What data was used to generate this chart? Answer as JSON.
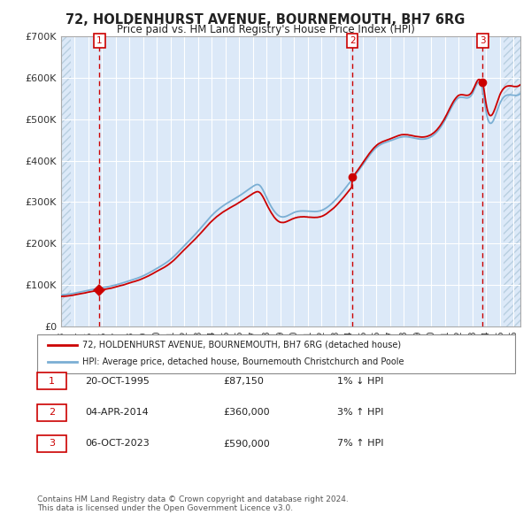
{
  "title": "72, HOLDENHURST AVENUE, BOURNEMOUTH, BH7 6RG",
  "subtitle": "Price paid vs. HM Land Registry's House Price Index (HPI)",
  "legend_line1": "72, HOLDENHURST AVENUE, BOURNEMOUTH, BH7 6RG (detached house)",
  "legend_line2": "HPI: Average price, detached house, Bournemouth Christchurch and Poole",
  "footnote": "Contains HM Land Registry data © Crown copyright and database right 2024.\nThis data is licensed under the Open Government Licence v3.0.",
  "transactions": [
    {
      "num": 1,
      "date": "20-OCT-1995",
      "price": 87150,
      "pct": "1%",
      "dir": "↓"
    },
    {
      "num": 2,
      "date": "04-APR-2014",
      "price": 360000,
      "pct": "3%",
      "dir": "↑"
    },
    {
      "num": 3,
      "date": "06-OCT-2023",
      "price": 590000,
      "pct": "7%",
      "dir": "↑"
    }
  ],
  "transaction_dates_decimal": [
    1995.8,
    2014.25,
    2023.75
  ],
  "transaction_prices": [
    87150,
    360000,
    590000
  ],
  "ylim": [
    0,
    700000
  ],
  "yticks": [
    0,
    100000,
    200000,
    300000,
    400000,
    500000,
    600000,
    700000
  ],
  "ytick_labels": [
    "£0",
    "£100K",
    "£200K",
    "£300K",
    "£400K",
    "£500K",
    "£600K",
    "£700K"
  ],
  "xlim_start": 1993.0,
  "xlim_end": 2026.5,
  "xtick_start": 1993,
  "xtick_end": 2026,
  "background_color": "#dce9f8",
  "hatch_color": "#b8cfe0",
  "grid_color": "#ffffff",
  "line_color_red": "#cc0000",
  "line_color_blue": "#7bafd4",
  "dashed_vline_color": "#cc0000",
  "marker_color": "#cc0000",
  "box_color": "#cc0000",
  "hpi_control_years": [
    1993,
    1994,
    1995,
    1996,
    1997,
    1998,
    1999,
    2000,
    2001,
    2002,
    2003,
    2004,
    2005,
    2006,
    2007,
    2007.5,
    2008,
    2009,
    2010,
    2011,
    2012,
    2013,
    2014,
    2015,
    2016,
    2017,
    2018,
    2019,
    2020,
    2021,
    2022,
    2023,
    2023.75,
    2024,
    2025,
    2026,
    2026.5
  ],
  "hpi_control_vals": [
    76000,
    80000,
    87000,
    93000,
    100000,
    110000,
    122000,
    140000,
    162000,
    195000,
    230000,
    268000,
    295000,
    315000,
    338000,
    340000,
    310000,
    265000,
    275000,
    278000,
    280000,
    305000,
    345000,
    390000,
    432000,
    448000,
    458000,
    453000,
    458000,
    498000,
    552000,
    562000,
    570000,
    518000,
    538000,
    558000,
    562000
  ]
}
